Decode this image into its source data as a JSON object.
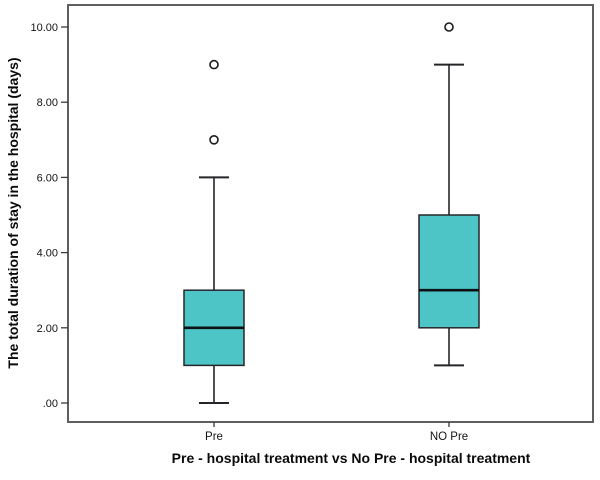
{
  "chart_data": {
    "type": "boxplot",
    "title": "",
    "xlabel": "Pre - hospital treatment vs No Pre - hospital treatment",
    "ylabel": "The total duration of stay in the hospital (days)",
    "categories": [
      "Pre",
      "NO Pre"
    ],
    "ylim": [
      0,
      10
    ],
    "grid": false,
    "legend": false,
    "yticks": [
      {
        "value": 0,
        "label": ".00"
      },
      {
        "value": 2,
        "label": "2.00"
      },
      {
        "value": 4,
        "label": "4.00"
      },
      {
        "value": 6,
        "label": "6.00"
      },
      {
        "value": 8,
        "label": "8.00"
      },
      {
        "value": 10,
        "label": "10.00"
      }
    ],
    "series": [
      {
        "name": "Pre",
        "whisker_low": 0,
        "q1": 1,
        "median": 2,
        "q3": 3,
        "whisker_high": 6,
        "outliers": [
          7,
          9
        ]
      },
      {
        "name": "NO Pre",
        "whisker_low": 1,
        "q1": 2,
        "median": 3,
        "q3": 5,
        "whisker_high": 9,
        "outliers": [
          10
        ]
      }
    ],
    "colors": {
      "box_fill": "#4DC4C5",
      "box_stroke": "#26262a",
      "median_line": "#0d1014",
      "whisker": "#26262a",
      "outlier_stroke": "#1a1a1a",
      "frame": "#5f5f5f",
      "tick": "#3c3c3c",
      "background": "#ffffff"
    }
  }
}
